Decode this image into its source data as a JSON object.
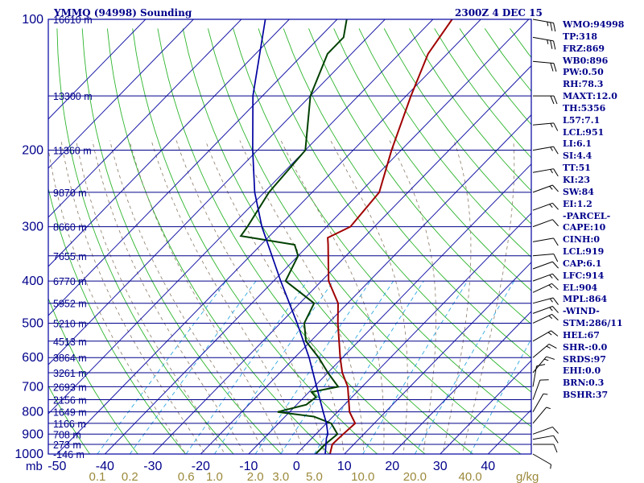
{
  "title": "YMMQ (94998) Sounding",
  "time": "2300Z  4 DEC 15",
  "indices": [
    "WMO:94998",
    "TP:318",
    "FRZ:869",
    "WB0:896",
    "PW:0.50",
    "RH:78.3",
    "MAXT:12.0",
    "TH:5356",
    "L57:7.1",
    "LCL:951",
    "LI:6.1",
    "SI:4.4",
    "TT:51",
    "KI:23",
    "SW:84",
    "EI:1.2",
    "-PARCEL-",
    "CAPE:10",
    "CINH:0",
    "LCL:919",
    "CAP:6.1",
    "LFC:914",
    "EL:904",
    "MPL:864",
    "-WIND-",
    "STM:286/11",
    "HEL:67",
    "SHR-:0.0",
    "SRDS:97",
    "EHI:0.0",
    "BRN:0.3",
    "BSHR:37"
  ],
  "chart_data": {
    "type": "line",
    "chart_kind": "Skew-T log-P sounding",
    "y_scale": "log",
    "ylim": [
      1000,
      100
    ],
    "xlim": [
      -50,
      50
    ],
    "x_unit_label": "mb",
    "pressure_ticks": [
      100,
      200,
      300,
      400,
      500,
      600,
      700,
      800,
      900,
      1000
    ],
    "temperature_ticks": [
      -50,
      -40,
      -30,
      -20,
      -10,
      0,
      10,
      20,
      30,
      40
    ],
    "height_labels": [
      {
        "p": 100,
        "label": "16610 m"
      },
      {
        "p": 150,
        "label": "13300 m"
      },
      {
        "p": 200,
        "label": "11360 m"
      },
      {
        "p": 250,
        "label": "9870 m"
      },
      {
        "p": 300,
        "label": "8660 m"
      },
      {
        "p": 350,
        "label": "7655 m"
      },
      {
        "p": 400,
        "label": "6770 m"
      },
      {
        "p": 450,
        "label": "5952 m"
      },
      {
        "p": 500,
        "label": "5210 m"
      },
      {
        "p": 550,
        "label": "4513 m"
      },
      {
        "p": 600,
        "label": "3864 m"
      },
      {
        "p": 650,
        "label": "3261 m"
      },
      {
        "p": 700,
        "label": "2693 m"
      },
      {
        "p": 750,
        "label": "2156 m"
      },
      {
        "p": 800,
        "label": "1649 m"
      },
      {
        "p": 850,
        "label": "1166 m"
      },
      {
        "p": 900,
        "label": "708 m"
      },
      {
        "p": 950,
        "label": "273 m"
      },
      {
        "p": 1000,
        "label": "-146 m"
      }
    ],
    "mixing_ratio_labels": [
      {
        "w": 0.1,
        "label": "0.1"
      },
      {
        "w": 0.2,
        "label": "0.2"
      },
      {
        "w": 0.6,
        "label": "0.6"
      },
      {
        "w": 1.0,
        "label": "1.0"
      },
      {
        "w": 2.0,
        "label": "2.0"
      },
      {
        "w": 3.0,
        "label": "3.0"
      },
      {
        "w": 5.0,
        "label": "5.0"
      },
      {
        "w": 10.0,
        "label": "10.0"
      },
      {
        "w": 20.0,
        "label": "20.0"
      },
      {
        "w": 40.0,
        "label": "40.0"
      }
    ],
    "mixing_ratio_unit": "g/kg",
    "series": [
      {
        "role": "temperature",
        "color": "#a00000",
        "points": [
          {
            "p": 1000,
            "t": 7.0
          },
          {
            "p": 950,
            "t": 5.5
          },
          {
            "p": 925,
            "t": 5.6
          },
          {
            "p": 900,
            "t": 5.7
          },
          {
            "p": 850,
            "t": 6.0
          },
          {
            "p": 800,
            "t": 2.5
          },
          {
            "p": 700,
            "t": -3.0
          },
          {
            "p": 650,
            "t": -7.0
          },
          {
            "p": 600,
            "t": -10.5
          },
          {
            "p": 500,
            "t": -18.0
          },
          {
            "p": 450,
            "t": -22.0
          },
          {
            "p": 400,
            "t": -28.5
          },
          {
            "p": 330,
            "t": -36.0
          },
          {
            "p": 318,
            "t": -37.5
          },
          {
            "p": 300,
            "t": -35.0
          },
          {
            "p": 250,
            "t": -36.0
          },
          {
            "p": 200,
            "t": -42.0
          },
          {
            "p": 150,
            "t": -49.0
          },
          {
            "p": 120,
            "t": -54.0
          },
          {
            "p": 100,
            "t": -56.0
          }
        ]
      },
      {
        "role": "dewpoint",
        "color": "#004000",
        "points": [
          {
            "p": 1000,
            "t": 4.0
          },
          {
            "p": 950,
            "t": 4.0
          },
          {
            "p": 900,
            "t": 4.5
          },
          {
            "p": 850,
            "t": 1.0
          },
          {
            "p": 820,
            "t": -4.0
          },
          {
            "p": 800,
            "t": -12.5
          },
          {
            "p": 770,
            "t": -8.0
          },
          {
            "p": 740,
            "t": -7.5
          },
          {
            "p": 720,
            "t": -9.5
          },
          {
            "p": 700,
            "t": -5.0
          },
          {
            "p": 650,
            "t": -10.0
          },
          {
            "p": 600,
            "t": -15.0
          },
          {
            "p": 550,
            "t": -21.0
          },
          {
            "p": 500,
            "t": -25.0
          },
          {
            "p": 450,
            "t": -27.0
          },
          {
            "p": 400,
            "t": -37.5
          },
          {
            "p": 350,
            "t": -40.0
          },
          {
            "p": 330,
            "t": -43.0
          },
          {
            "p": 315,
            "t": -56.0
          },
          {
            "p": 300,
            "t": -56.5
          },
          {
            "p": 250,
            "t": -59.0
          },
          {
            "p": 200,
            "t": -60.0
          },
          {
            "p": 150,
            "t": -70.0
          },
          {
            "p": 120,
            "t": -75.0
          },
          {
            "p": 110,
            "t": -75.0
          },
          {
            "p": 100,
            "t": -78.0
          }
        ]
      },
      {
        "role": "parcel",
        "color": "#0000a0",
        "points": [
          {
            "p": 1000,
            "t": 6.0
          },
          {
            "p": 919,
            "t": 3.0
          },
          {
            "p": 900,
            "t": 2.5
          },
          {
            "p": 850,
            "t": 0.0
          },
          {
            "p": 800,
            "t": -3.0
          },
          {
            "p": 700,
            "t": -9.5
          },
          {
            "p": 600,
            "t": -17.0
          },
          {
            "p": 500,
            "t": -26.5
          },
          {
            "p": 400,
            "t": -38.5
          },
          {
            "p": 300,
            "t": -53.5
          },
          {
            "p": 250,
            "t": -62.0
          },
          {
            "p": 200,
            "t": -71.0
          },
          {
            "p": 150,
            "t": -82.0
          },
          {
            "p": 100,
            "t": -95.0
          }
        ]
      }
    ],
    "wind_barbs": [
      {
        "p": 100,
        "dir": 280,
        "spd": 25
      },
      {
        "p": 110,
        "dir": 280,
        "spd": 25
      },
      {
        "p": 125,
        "dir": 275,
        "spd": 20
      },
      {
        "p": 150,
        "dir": 270,
        "spd": 20
      },
      {
        "p": 175,
        "dir": 265,
        "spd": 15
      },
      {
        "p": 200,
        "dir": 260,
        "spd": 15
      },
      {
        "p": 225,
        "dir": 260,
        "spd": 15
      },
      {
        "p": 250,
        "dir": 250,
        "spd": 15
      },
      {
        "p": 275,
        "dir": 250,
        "spd": 15
      },
      {
        "p": 300,
        "dir": 250,
        "spd": 10
      },
      {
        "p": 325,
        "dir": 260,
        "spd": 10
      },
      {
        "p": 350,
        "dir": 265,
        "spd": 10
      },
      {
        "p": 375,
        "dir": 250,
        "spd": 10
      },
      {
        "p": 400,
        "dir": 250,
        "spd": 15
      },
      {
        "p": 425,
        "dir": 245,
        "spd": 15
      },
      {
        "p": 450,
        "dir": 255,
        "spd": 15
      },
      {
        "p": 475,
        "dir": 250,
        "spd": 15
      },
      {
        "p": 500,
        "dir": 245,
        "spd": 15
      },
      {
        "p": 550,
        "dir": 240,
        "spd": 15
      },
      {
        "p": 600,
        "dir": 230,
        "spd": 15
      },
      {
        "p": 650,
        "dir": 220,
        "spd": 15
      },
      {
        "p": 700,
        "dir": 190,
        "spd": 10
      },
      {
        "p": 750,
        "dir": 200,
        "spd": 10
      },
      {
        "p": 800,
        "dir": 210,
        "spd": 5
      },
      {
        "p": 850,
        "dir": 220,
        "spd": 5
      },
      {
        "p": 900,
        "dir": 250,
        "spd": 10
      },
      {
        "p": 925,
        "dir": 260,
        "spd": 10
      },
      {
        "p": 950,
        "dir": 270,
        "spd": 10
      },
      {
        "p": 1000,
        "dir": 300,
        "spd": 5
      }
    ]
  }
}
